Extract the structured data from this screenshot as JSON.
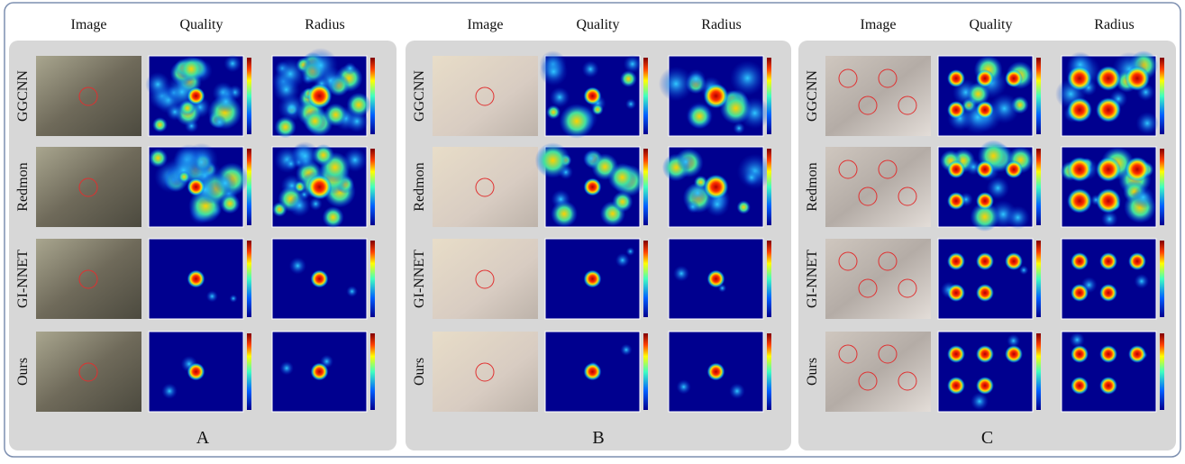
{
  "panels": [
    {
      "label": "A",
      "columns": [
        "Image",
        "Quality",
        "Radius"
      ],
      "rows": [
        "GGCNN",
        "Redmon",
        "GI-NNET",
        "Ours"
      ]
    },
    {
      "label": "B",
      "columns": [
        "Image",
        "Quality",
        "Radius"
      ],
      "rows": [
        "GGCNN",
        "Redmon",
        "GI-NNET",
        "Ours"
      ]
    },
    {
      "label": "C",
      "columns": [
        "Image",
        "Quality",
        "Radius"
      ],
      "rows": [
        "GGCNN",
        "Redmon",
        "GI-NNET",
        "Ours"
      ]
    }
  ]
}
